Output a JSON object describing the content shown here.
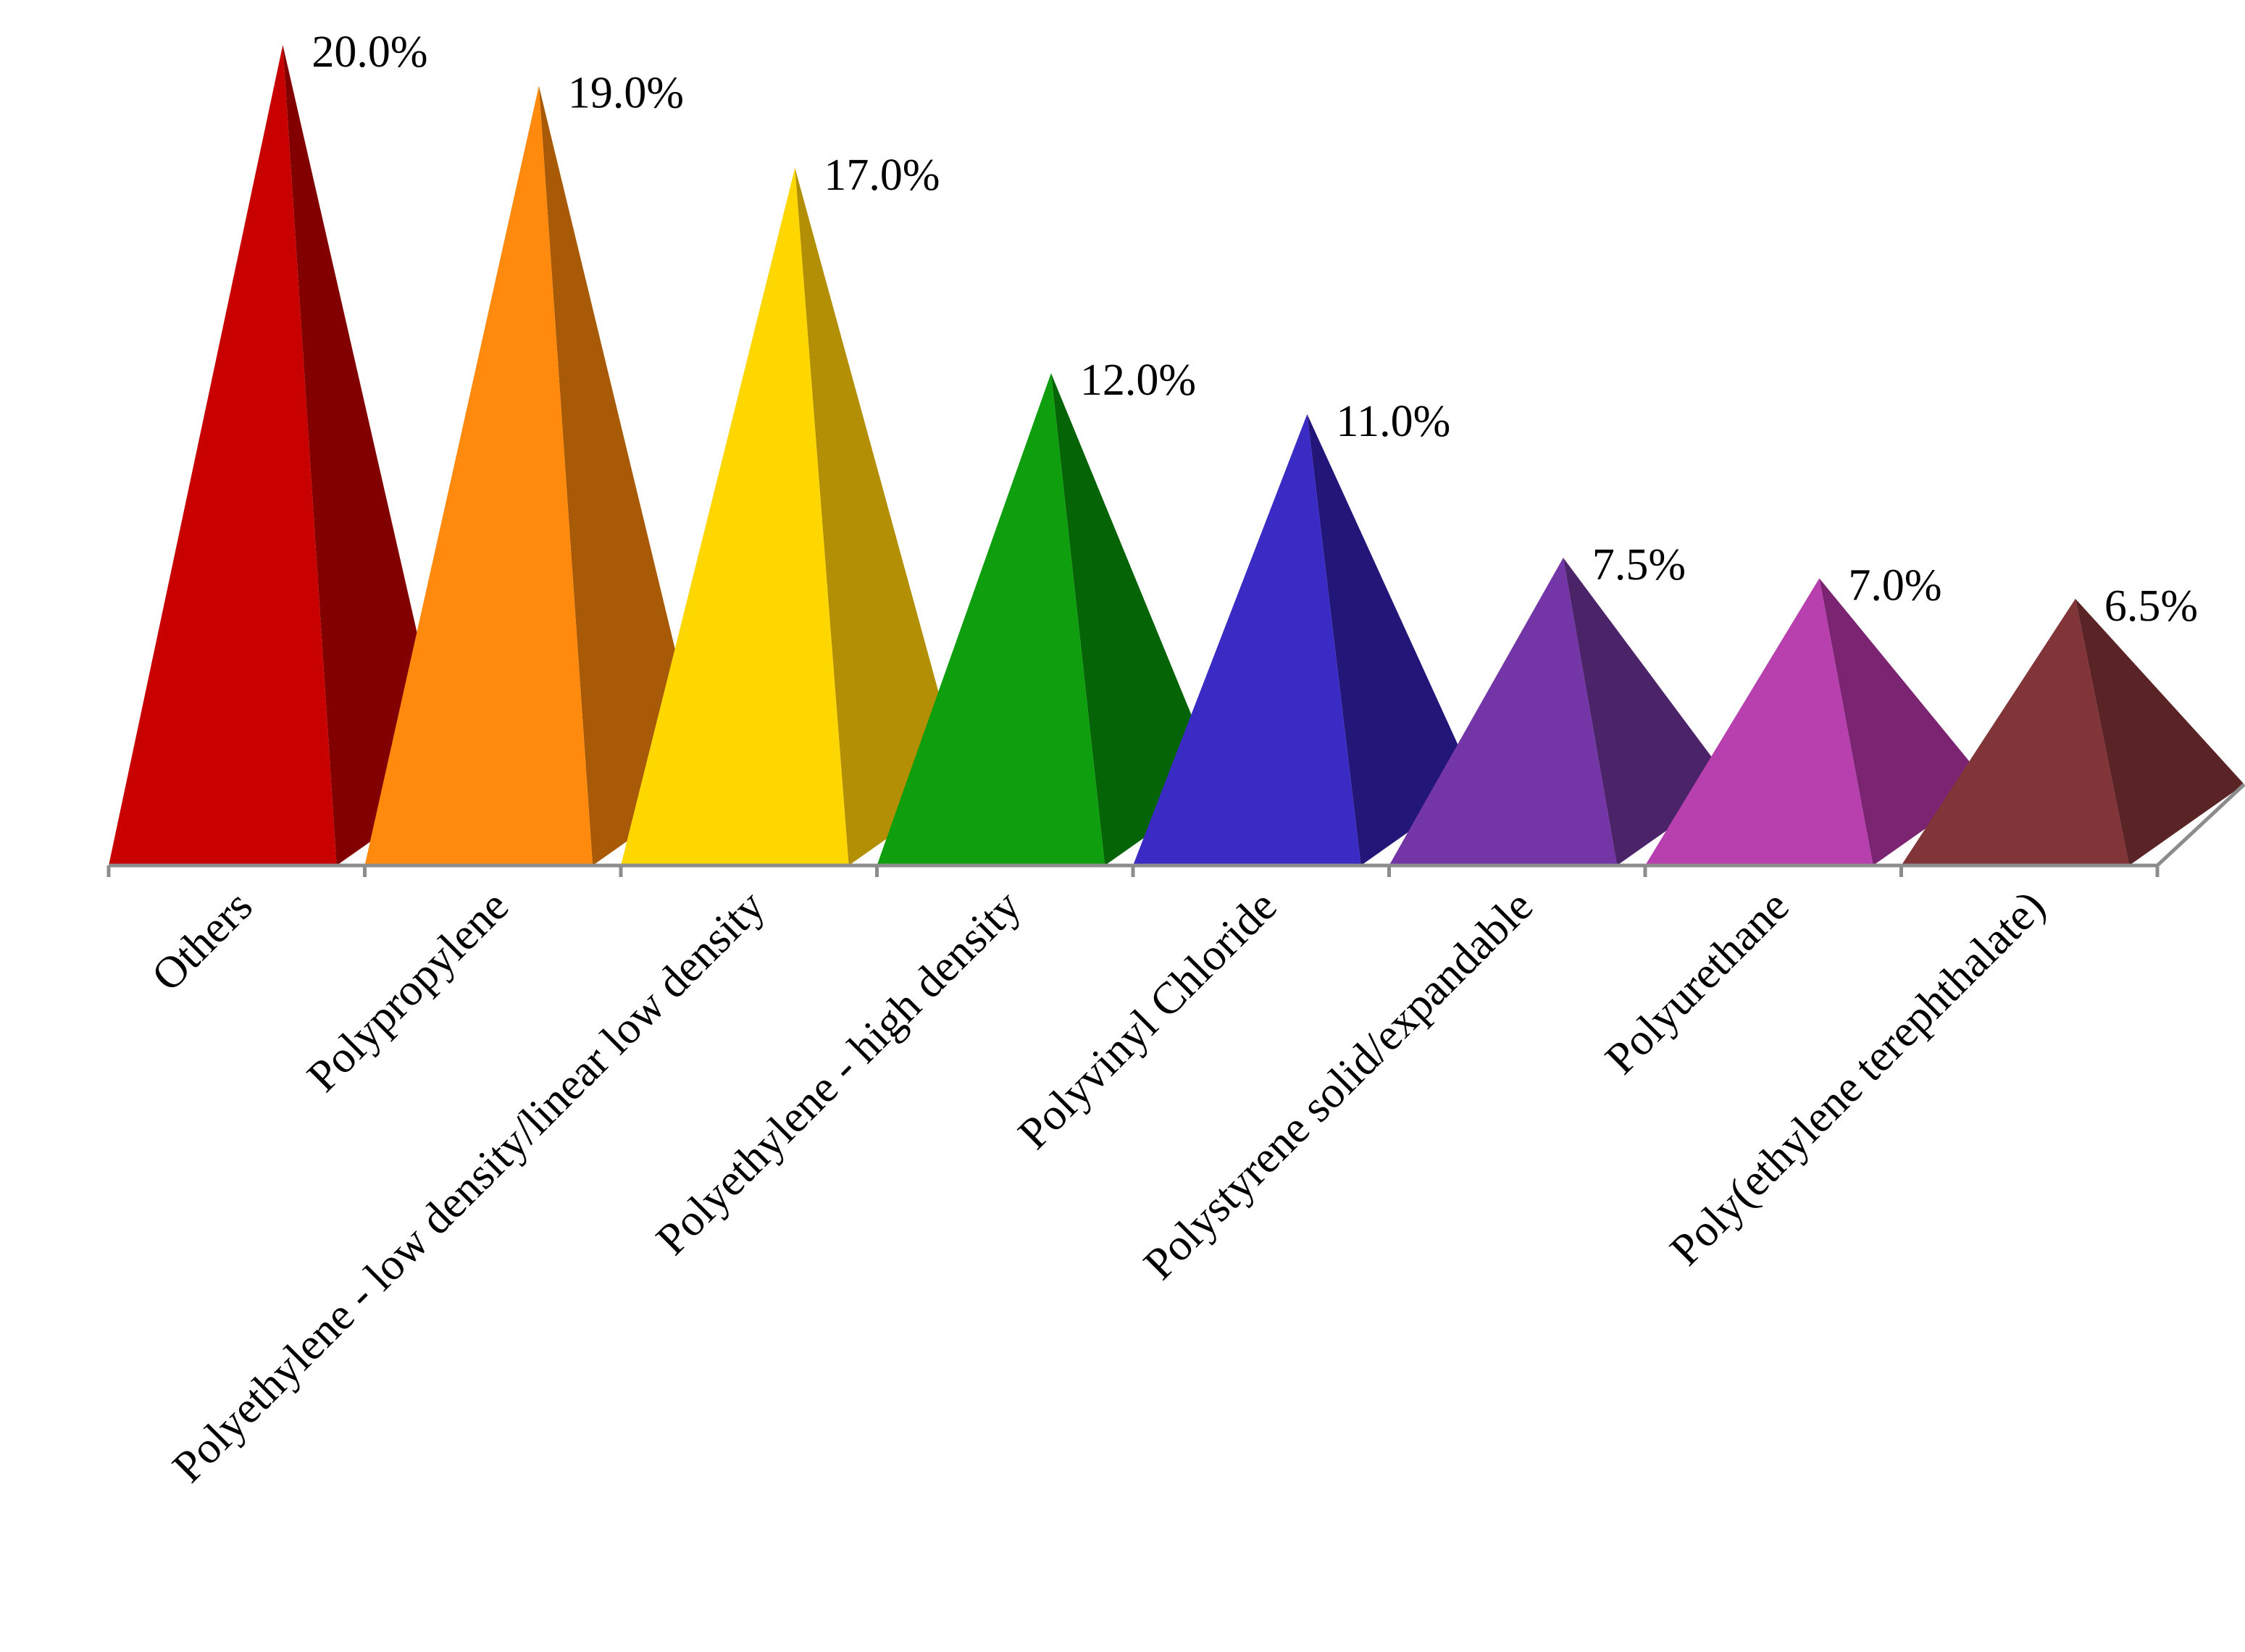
{
  "chart_data": {
    "type": "bar",
    "bar_shape": "pyramid",
    "title": "",
    "xlabel": "",
    "ylabel": "",
    "ylim": [
      0,
      20
    ],
    "grid": false,
    "legend": "none",
    "value_format": "percent-1-decimal",
    "categories": [
      "Others",
      "Polypropylene",
      "Polyethylene - low density/linear low density",
      "Polyethylene - high density",
      "Polyvinyl Chloride",
      "Polystyrene solid/expandable",
      "Polyurethane",
      "Poly(ethylene terephthalate)"
    ],
    "values": [
      20.0,
      19.0,
      17.0,
      12.0,
      11.0,
      7.5,
      7.0,
      6.5
    ],
    "value_labels": [
      "20.0%",
      "19.0%",
      "17.0%",
      "12.0%",
      "11.0%",
      "7.5%",
      "7.0%",
      "6.5%"
    ],
    "colors": [
      "#C80000",
      "#FF8A0E",
      "#FFD700",
      "#0E9E0E",
      "#3A2BC4",
      "#7436A6",
      "#B73FAE",
      "#823538"
    ],
    "shade_colors": [
      "#830000",
      "#A85A06",
      "#B38F06",
      "#056506",
      "#221779",
      "#4B2369",
      "#7B2572",
      "#5A2426"
    ]
  }
}
